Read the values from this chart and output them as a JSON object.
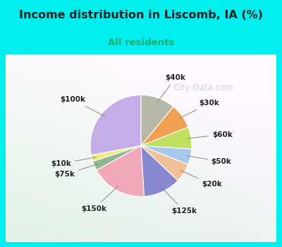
{
  "title": "Income distribution in Liscomb, IA (%)",
  "subtitle": "All residents",
  "outer_bg": "#00EEEE",
  "inner_bg_color": "#e8f5ef",
  "title_color": "#222222",
  "subtitle_color": "#2aaa6a",
  "watermark": "City-Data.com",
  "watermark_color": "#aabbcc",
  "labels": [
    "$100k",
    "$10k",
    "$75k",
    "$150k",
    "$125k",
    "$20k",
    "$50k",
    "$60k",
    "$30k",
    "$40k"
  ],
  "sizes": [
    28,
    2,
    3,
    18,
    12,
    6,
    5,
    7,
    8,
    11
  ],
  "colors": [
    "#c5aee8",
    "#f0e87a",
    "#90b890",
    "#f0a8b8",
    "#8888d0",
    "#f0c098",
    "#a8c8f0",
    "#c0e060",
    "#f0a050",
    "#b8b8a8"
  ],
  "startangle": 90
}
